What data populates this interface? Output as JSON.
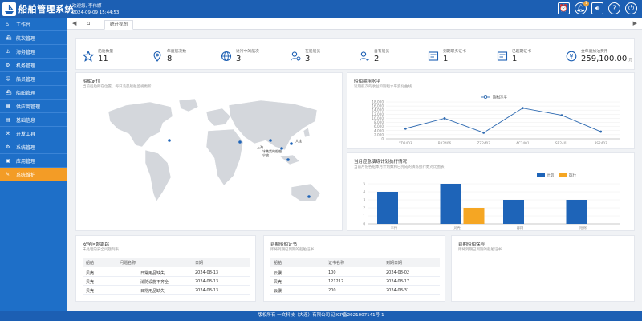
{
  "header": {
    "title": "船舶管理系统",
    "welcome": "欢迎您,  李伟娜",
    "datetime": "2024-09-09 15:44:53",
    "badge_count": "1"
  },
  "sidebar": {
    "items": [
      {
        "label": "工作台",
        "icon": "home"
      },
      {
        "label": "航次管理",
        "icon": "ship"
      },
      {
        "label": "海务管理",
        "icon": "anchor"
      },
      {
        "label": "机务管理",
        "icon": "gear"
      },
      {
        "label": "船员管理",
        "icon": "user"
      },
      {
        "label": "船舶管理",
        "icon": "ship"
      },
      {
        "label": "供应商管理",
        "icon": "store"
      },
      {
        "label": "基础信息",
        "icon": "doc"
      },
      {
        "label": "开发工具",
        "icon": "tool"
      },
      {
        "label": "系统管理",
        "icon": "gear"
      },
      {
        "label": "应用管理",
        "icon": "grid"
      },
      {
        "label": "系统维护",
        "icon": "wrench",
        "active": true
      }
    ]
  },
  "tabs": {
    "active": "统计视图"
  },
  "stats": [
    {
      "label": "船舶数量",
      "value": "11",
      "icon": "star-icon"
    },
    {
      "label": "年度航次数",
      "value": "8",
      "icon": "map-pin-icon"
    },
    {
      "label": "进行中的航次",
      "value": "3",
      "icon": "globe-icon"
    },
    {
      "label": "在船船员",
      "value": "3",
      "icon": "user-icon"
    },
    {
      "label": "自有船员",
      "value": "2",
      "icon": "user-icon"
    },
    {
      "label": "到期职务证书",
      "value": "1",
      "icon": "certificate-icon"
    },
    {
      "label": "已超期证书",
      "value": "1",
      "icon": "certificate-icon"
    },
    {
      "label": "全年度加油费用",
      "value": "259,100.00",
      "unit": "元",
      "icon": "yen-icon"
    }
  ],
  "map_panel": {
    "title": "船舶定位",
    "subtitle": "当前船舶所在位置，每日凌晨船舶监视更新",
    "labels": [
      "大连",
      "上海",
      "宁波",
      "冰集货的船舶"
    ]
  },
  "line_panel": {
    "title": "船舶期租水平",
    "subtitle": "近期航次的收益和期租水平变化曲线"
  },
  "bar_panel": {
    "title": "当月应急演练计划执行情况",
    "subtitle": "当前月份各船本月计划数和已完成的演练执行数对比图表"
  },
  "safety_panel": {
    "title": "安全问题跟踪",
    "subtitle": "未处理的安全问题列表",
    "columns": [
      "船舶",
      "问题名称",
      "日期"
    ],
    "rows": [
      [
        "贝壳",
        "日常用品缺失",
        "2024-08-13"
      ],
      [
        "贝壳",
        "消防设施不齐全",
        "2024-08-13"
      ],
      [
        "贝壳",
        "日常用品缺失",
        "2024-08-13"
      ]
    ]
  },
  "cert_panel": {
    "title": "到期船舶证书",
    "subtitle": "即将到期已到期的船舶证书",
    "columns": [
      "船舶",
      "证书名称",
      "到期日期"
    ],
    "rows": [
      [
        "云骥",
        "100",
        "2024-08-02"
      ],
      [
        "贝壳",
        "121212",
        "2024-08-17"
      ],
      [
        "云骥",
        "200",
        "2024-08-31"
      ]
    ]
  },
  "insurance_panel": {
    "title": "到期船舶保险",
    "subtitle": "即将到期已到期的船舶证书"
  },
  "footer": {
    "text": "版权所有 一文科技（大连）有限公司    辽ICP备2021007141号-1"
  },
  "colors": {
    "header": "#1c5fb3",
    "sidebar": "#1e6fc8",
    "active": "#f39c26",
    "plan": "#1e64b8",
    "done": "#f5a623"
  },
  "chart_data": [
    {
      "type": "line",
      "title": "船舶期租水平",
      "legend": [
        "期租水平"
      ],
      "legend_position": "top",
      "categories": [
        "YD2403",
        "BX2406",
        "ZZ2403",
        "AC2401",
        "SB2401",
        "BS2403"
      ],
      "series": [
        {
          "name": "期租水平",
          "values": [
            5000,
            10000,
            3000,
            15000,
            11500,
            3500
          ]
        }
      ],
      "ylim": [
        0,
        18000
      ],
      "yticks": [
        0,
        2000,
        4000,
        6000,
        8000,
        10000,
        12000,
        14000,
        16000,
        18000
      ],
      "grid": true
    },
    {
      "type": "bar",
      "title": "当月应急演练计划执行情况",
      "legend": [
        "计划",
        "执行"
      ],
      "legend_position": "top",
      "categories": [
        "丰伟",
        "贝壳",
        "蓉翔",
        "阳锦"
      ],
      "series": [
        {
          "name": "计划",
          "values": [
            4,
            5,
            3,
            3
          ]
        },
        {
          "name": "执行",
          "values": [
            null,
            2,
            null,
            null
          ]
        }
      ],
      "ylim": [
        0,
        5
      ],
      "yticks": [
        0,
        1,
        2,
        3,
        4,
        5
      ],
      "grid": true
    }
  ]
}
